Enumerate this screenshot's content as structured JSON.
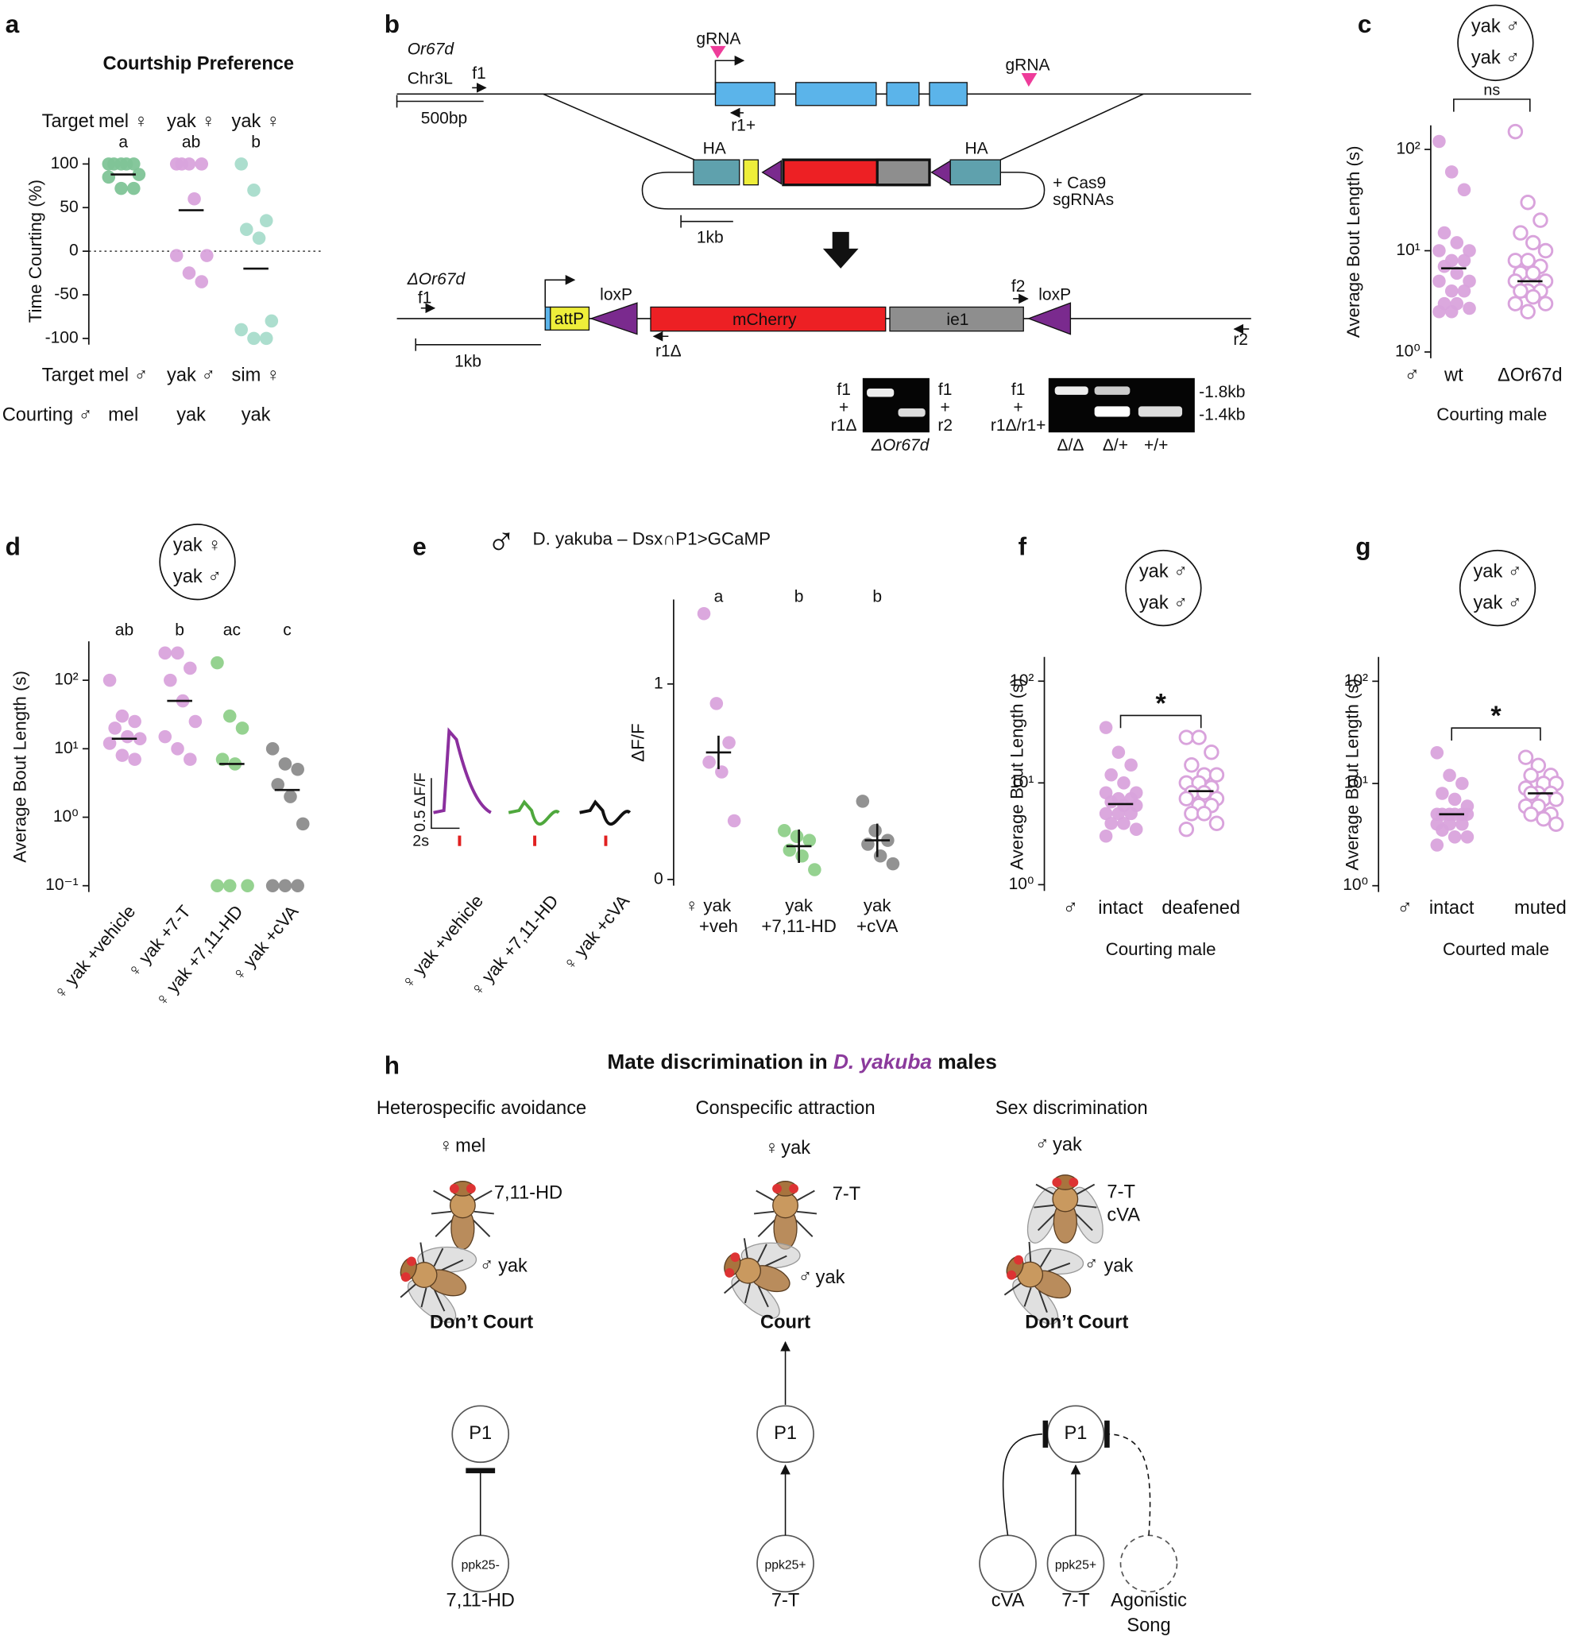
{
  "chart_data": [
    {
      "type": "dotplot",
      "panel": "a",
      "title": "Courtship Preference",
      "ylabel": "Time Courting (%)",
      "yscale": "linear",
      "ylim": [
        -100,
        100
      ],
      "yticks": [
        -100,
        -50,
        0,
        50,
        100
      ],
      "zero_line": true,
      "row_labels": [
        "Target",
        "Target",
        "Courting ♂"
      ],
      "groups": [
        {
          "letter": "a",
          "target_top": "mel ♀",
          "target_bottom": "mel ♂",
          "courting": "mel",
          "color": "#7fc497",
          "text_color": "#3a9a4a",
          "filled": true,
          "values": [
            100,
            100,
            100,
            100,
            100,
            88,
            85,
            72,
            72
          ],
          "center": 88
        },
        {
          "letter": "ab",
          "target_top": "yak ♀",
          "target_bottom": "yak ♂",
          "courting": "yak",
          "color": "#d9a3dc",
          "text_color": "#8b3a9c",
          "filled": true,
          "values": [
            100,
            100,
            100,
            100,
            60,
            -5,
            -5,
            -25,
            -35
          ],
          "center": 47
        },
        {
          "letter": "b",
          "target_top": "yak ♀",
          "target_bottom": "sim ♀",
          "courting": "yak",
          "color": "#a8dccb",
          "text_color": "#3aa58a",
          "courting_color": "#8b3a9c",
          "top_color": "#8b3a9c",
          "filled": true,
          "values": [
            100,
            70,
            35,
            25,
            15,
            -80,
            -90,
            -100,
            -100
          ],
          "center": -20
        }
      ]
    },
    {
      "type": "dotplot",
      "panel": "c",
      "ylabel": "Average Bout Length (s)",
      "xlabel": "Courting male",
      "sex_symbol": "♂",
      "yscale": "log",
      "ylim": [
        1,
        150
      ],
      "yticks": [
        {
          "value": 1,
          "label": "10⁰"
        },
        {
          "value": 10,
          "label": "10¹"
        },
        {
          "value": 100,
          "label": "10²"
        }
      ],
      "inset": [
        "yak ♂",
        "yak ♂"
      ],
      "significance": "ns",
      "groups": [
        {
          "name": "wt",
          "color": "#d9a3dc",
          "filled": true,
          "values": [
            120,
            60,
            40,
            15,
            12,
            10,
            10,
            8,
            8,
            7,
            6,
            5,
            5,
            4,
            4,
            3,
            3,
            2.7,
            2.5,
            2.5
          ],
          "center": 6.7
        },
        {
          "name": "ΔOr67d",
          "color": "#d9a3dc",
          "filled": false,
          "values": [
            150,
            30,
            20,
            15,
            12,
            10,
            8,
            8,
            7,
            6,
            6,
            5,
            5,
            4,
            4,
            4,
            3.5,
            3,
            3,
            2.5
          ],
          "center": 5
        }
      ]
    },
    {
      "type": "dotplot",
      "panel": "d",
      "ylabel": "Average Bout Length (s)",
      "yscale": "log",
      "ylim": [
        0.1,
        300
      ],
      "yticks": [
        {
          "value": 0.1,
          "label": "10⁻¹"
        },
        {
          "value": 1,
          "label": "10⁰"
        },
        {
          "value": 10,
          "label": "10¹"
        },
        {
          "value": 100,
          "label": "10²"
        }
      ],
      "inset": [
        "yak ♀",
        "yak ♂"
      ],
      "groups": [
        {
          "name": "♀ yak +vehicle",
          "letter": "ab",
          "color": "#d9a3dc",
          "filled": true,
          "values": [
            100,
            30,
            25,
            20,
            15,
            14,
            12,
            8,
            7
          ],
          "center": 14
        },
        {
          "name": "♀ yak +7-T",
          "letter": "b",
          "color": "#d9a3dc",
          "filled": true,
          "values": [
            250,
            250,
            150,
            100,
            50,
            25,
            15,
            10,
            7
          ],
          "center": 50
        },
        {
          "name": "♀ yak +7,11-HD",
          "letter": "ac",
          "color": "#8fd08a",
          "filled": true,
          "values": [
            180,
            30,
            20,
            7,
            6,
            0.1,
            0.1,
            0.1
          ],
          "center": 6
        },
        {
          "name": "♀ yak +cVA",
          "letter": "c",
          "color": "#8c8c8c",
          "filled": true,
          "values": [
            10,
            6,
            5,
            3,
            2,
            0.8,
            0.1,
            0.1,
            0.1
          ],
          "center": 2.5
        }
      ]
    },
    {
      "type": "dotplot",
      "panel": "e",
      "title": "D. yakuba – Dsx∩P1>GCaMP",
      "sex_symbol": "♂",
      "ylabel": "ΔF/F",
      "yscale": "linear",
      "ylim": [
        0,
        1.4
      ],
      "yticks": [
        0,
        1
      ],
      "center_type": "mean",
      "traces": {
        "scale_y": "0.5 ΔF/F",
        "scale_x": "2s",
        "labels": [
          "♀ yak +vehicle",
          "♀ yak +7,11-HD",
          "♀ yak +cVA"
        ],
        "colors": [
          "#8b2f9e",
          "#4fa83d",
          "#111111"
        ]
      },
      "groups": [
        {
          "label_lines": [
            "♀ yak",
            "+veh"
          ],
          "letter": "a",
          "color": "#d9a3dc",
          "filled": true,
          "values": [
            1.36,
            0.9,
            0.7,
            0.6,
            0.55,
            0.3
          ],
          "center": 0.65
        },
        {
          "label_lines": [
            "yak",
            "+7,11-HD"
          ],
          "letter": "b",
          "color": "#8fd08a",
          "filled": true,
          "values": [
            0.25,
            0.22,
            0.2,
            0.15,
            0.12,
            0.05
          ],
          "center": 0.17
        },
        {
          "label_lines": [
            "yak",
            "+cVA"
          ],
          "letter": "b",
          "color": "#8c8c8c",
          "filled": true,
          "values": [
            0.4,
            0.25,
            0.2,
            0.18,
            0.12,
            0.08
          ],
          "center": 0.2
        }
      ]
    },
    {
      "type": "dotplot",
      "panel": "f",
      "ylabel": "Average Bout Length (s)",
      "xlabel": "Courting male",
      "sex_symbol": "♂",
      "yscale": "log",
      "ylim": [
        1,
        150
      ],
      "yticks": [
        {
          "value": 1,
          "label": "10⁰"
        },
        {
          "value": 10,
          "label": "10¹"
        },
        {
          "value": 100,
          "label": "10²"
        }
      ],
      "inset": [
        "yak ♂",
        "yak ♂"
      ],
      "significance": "*",
      "groups": [
        {
          "name": "intact",
          "color": "#d9a3dc",
          "filled": true,
          "values": [
            35,
            20,
            15,
            12,
            10,
            8,
            8,
            7,
            7,
            6.5,
            6,
            6,
            5,
            5,
            5,
            4,
            4,
            3.5,
            3
          ],
          "center": 6.2
        },
        {
          "name": "deafened",
          "color": "#d9a3dc",
          "filled": false,
          "values": [
            28,
            28,
            20,
            15,
            12,
            12,
            10,
            10,
            9,
            8,
            8,
            7,
            7,
            6,
            6,
            5,
            5,
            4,
            3.5
          ],
          "center": 8.3
        }
      ]
    },
    {
      "type": "dotplot",
      "panel": "g",
      "ylabel": "Average Bout Length (s)",
      "xlabel": "Courted male",
      "sex_symbol": "♂",
      "yscale": "log",
      "ylim": [
        1,
        150
      ],
      "yticks": [
        {
          "value": 1,
          "label": "10⁰"
        },
        {
          "value": 10,
          "label": "10¹"
        },
        {
          "value": 100,
          "label": "10²"
        }
      ],
      "inset": [
        "yak ♂",
        "yak ♂"
      ],
      "significance": "*",
      "groups": [
        {
          "name": "intact",
          "color": "#d9a3dc",
          "filled": true,
          "values": [
            20,
            12,
            10,
            8,
            7,
            6,
            5,
            5,
            5,
            5,
            5,
            5,
            4,
            4,
            4,
            3.5,
            3,
            3,
            2.5
          ],
          "center": 5
        },
        {
          "name": "muted",
          "color": "#d9a3dc",
          "filled": false,
          "values": [
            18,
            15,
            12,
            12,
            10,
            10,
            9,
            8,
            8,
            8,
            7,
            7,
            6,
            6,
            5,
            5,
            4.5,
            4
          ],
          "center": 8
        }
      ]
    }
  ],
  "panel_b": {
    "panel": "b",
    "labels": [
      "Or67d",
      "Chr3L",
      "f1",
      "gRNA",
      "gRNA",
      "r1+",
      "500bp",
      "HA",
      "HA",
      "+ Cas9",
      "sgRNAs",
      "1kb",
      "ΔOr67d",
      "f1",
      "attP",
      "loxP",
      "mCherry",
      "ie1",
      "f2",
      "loxP",
      "r1Δ",
      "r2",
      "1kb",
      "f1",
      "+",
      "r1Δ",
      "f1",
      "+",
      "r2",
      "ΔOr67d",
      "f1",
      "+",
      "r1Δ/r1+",
      "-1.8kb",
      "-1.4kb",
      "Δ/Δ",
      "Δ/+",
      "+/+"
    ]
  },
  "panel_h": {
    "panel": "h",
    "title_parts": [
      "Mate discrimination in ",
      "D. yakuba",
      " males"
    ],
    "headings": [
      "Heterospecific avoidance",
      "Conspecific attraction",
      "Sex discrimination"
    ],
    "labels": [
      "♀",
      "mel",
      "7,11-HD",
      "♂",
      "yak",
      "Don’t Court",
      "P1",
      "ppk25-",
      "7,11-HD",
      "♀",
      "yak",
      "7-T",
      "♂",
      "yak",
      "Court",
      "P1",
      "ppk25+",
      "7-T",
      "♂",
      "yak",
      "7-T",
      "cVA",
      "♂",
      "yak",
      "Don’t Court",
      "P1",
      "ppk25+",
      "cVA",
      "7-T",
      "Agonistic",
      "Song"
    ]
  }
}
